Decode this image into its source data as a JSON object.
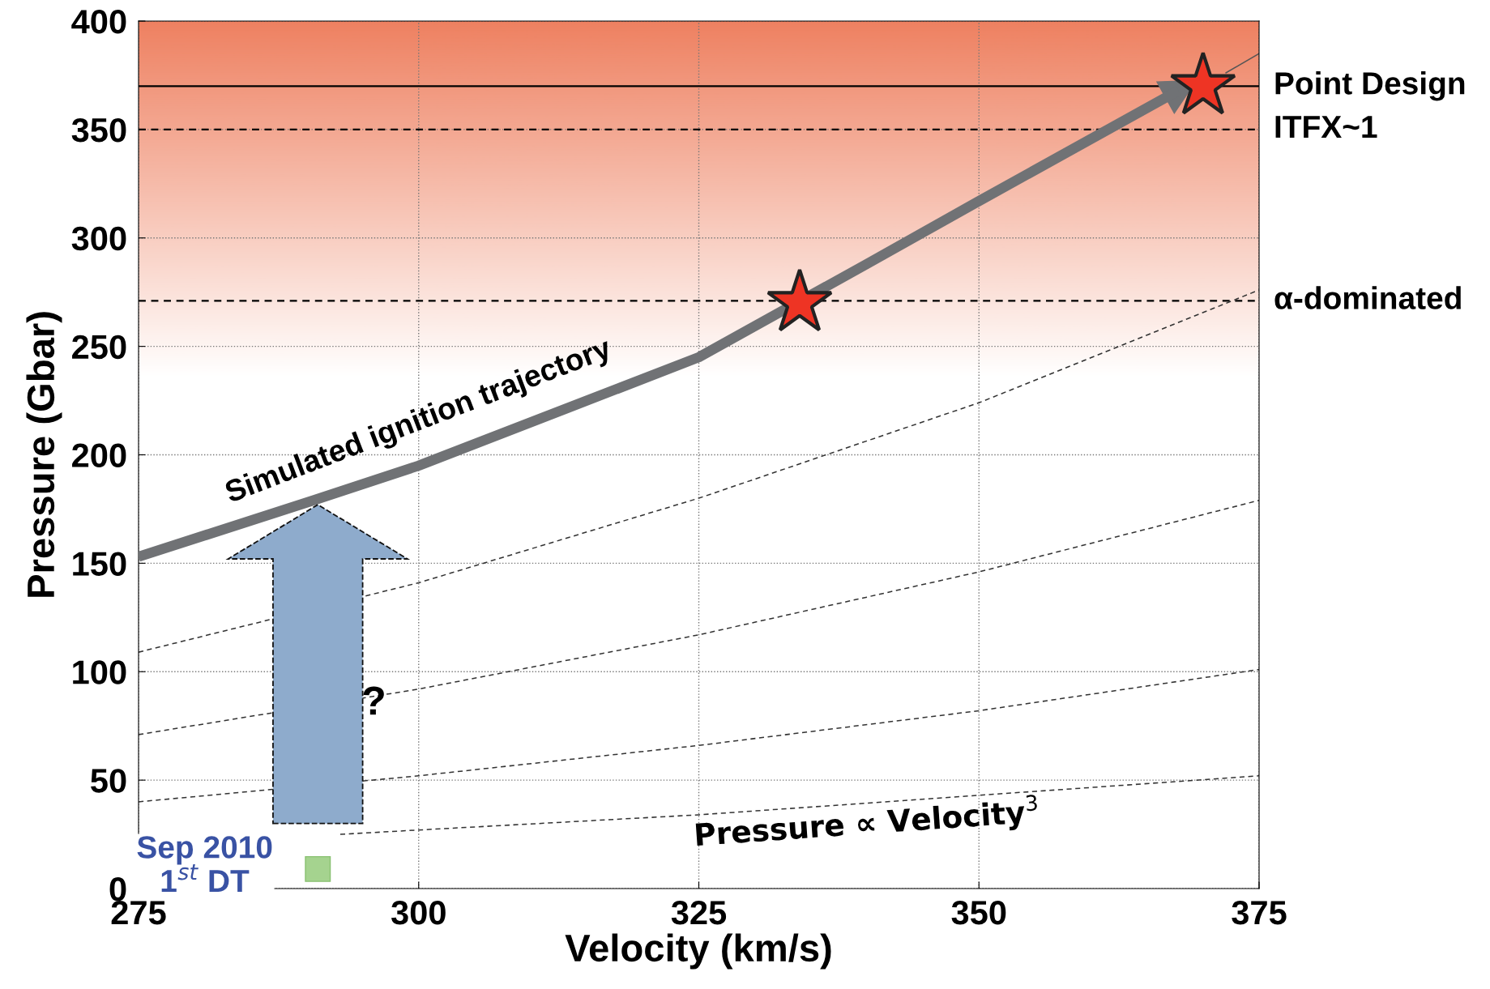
{
  "chart_data": {
    "type": "line",
    "xlabel": "Velocity (km/s)",
    "ylabel": "Pressure (Gbar)",
    "xlim": [
      275,
      375
    ],
    "xticks": [
      275,
      300,
      325,
      350,
      375
    ],
    "ylim": [
      0,
      400
    ],
    "yticks": [
      0,
      50,
      100,
      150,
      200,
      250,
      300,
      350,
      400
    ],
    "grid": true,
    "series": [
      {
        "line_style": "dashed",
        "color": "#333333",
        "x": [
          275,
          300,
          325,
          350,
          375
        ],
        "values": [
          109,
          141,
          180,
          224,
          276
        ]
      },
      {
        "line_style": "dashed",
        "color": "#333333",
        "x": [
          275,
          300,
          325,
          350,
          375
        ],
        "values": [
          71,
          92,
          117,
          146,
          179
        ]
      },
      {
        "line_style": "dashed",
        "color": "#333333",
        "x": [
          275,
          300,
          325,
          350,
          375
        ],
        "values": [
          40,
          52,
          66,
          82,
          101
        ]
      },
      {
        "line_style": "dashed",
        "color": "#333333",
        "x": [
          293,
          300,
          325,
          350,
          375
        ],
        "values": [
          25,
          27,
          34,
          43,
          52
        ]
      },
      {
        "line_style": "solid",
        "color": "#555555",
        "x": [
          372,
          375
        ],
        "values": [
          376,
          385
        ]
      },
      {
        "line_style": "solid",
        "color": "#707275",
        "x": [
          275,
          290.6,
          300,
          325,
          340,
          350,
          367.8
        ],
        "values": [
          153,
          179,
          195,
          245,
          288,
          317,
          368
        ]
      },
      {
        "type": "scatter",
        "marker": "star",
        "color": "#ee3424",
        "x": [
          334,
          370
        ],
        "values": [
          270,
          370
        ]
      },
      {
        "type": "scatter",
        "marker": "square",
        "color": "#a5d38f",
        "x": [
          291
        ],
        "values": [
          9
        ]
      }
    ],
    "ref_lines": [
      {
        "axis": "y",
        "value": 370,
        "label": "Point Design",
        "line_style": "solid",
        "color": "#000000"
      },
      {
        "axis": "y",
        "value": 350,
        "label": "ITFX~1",
        "line_style": "dashed",
        "color": "#000000"
      },
      {
        "axis": "y",
        "value": 271,
        "label": "α-dominated",
        "line_style": "dashed",
        "color": "#000000"
      }
    ],
    "bands": [
      {
        "axis": "y",
        "from": 235,
        "to": 400,
        "color": "#ee8060"
      }
    ],
    "annotations": [
      "Simulated ignition trajectory",
      "?",
      "Pressure ∝ Velocity$^{3}$",
      "Sep 2010\n1$^{st}$ DT"
    ]
  }
}
